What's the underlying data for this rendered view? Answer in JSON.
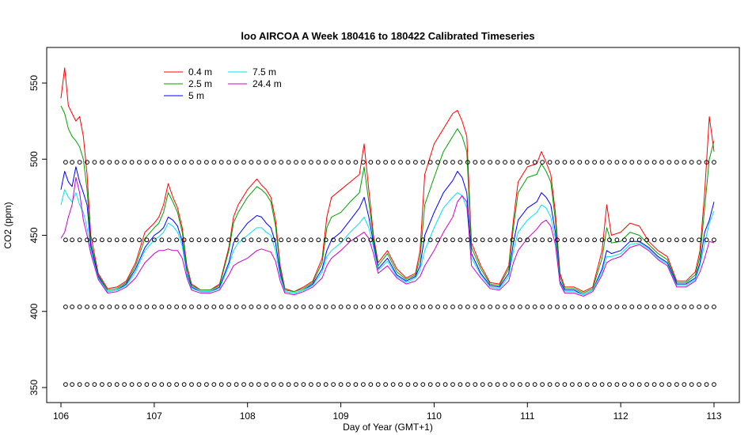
{
  "chart_data": {
    "type": "line",
    "title": "loo AIRCOA A  Week 180416 to 180422  Calibrated Timeseries",
    "xlabel": "Day of Year (GMT+1)",
    "ylabel": "CO2 (ppm)",
    "xlim": [
      106,
      113
    ],
    "ylim": [
      345,
      570
    ],
    "xticks": [
      106,
      107,
      108,
      109,
      110,
      111,
      112,
      113
    ],
    "xtick_labels": [
      "106",
      "107",
      "108",
      "109",
      "110",
      "111",
      "112",
      "113"
    ],
    "yticks": [
      350,
      400,
      450,
      500,
      550
    ],
    "ytick_labels": [
      "350",
      "400",
      "450",
      "500",
      "550"
    ],
    "grid": false,
    "legend_position": "top-left",
    "series": [
      {
        "name": "0.4 m",
        "color": "#ff0000",
        "x": [
          106.0,
          106.04,
          106.08,
          106.12,
          106.16,
          106.2,
          106.24,
          106.28,
          106.32,
          106.4,
          106.5,
          106.6,
          106.7,
          106.8,
          106.9,
          107.0,
          107.05,
          107.1,
          107.15,
          107.2,
          107.25,
          107.3,
          107.35,
          107.4,
          107.5,
          107.6,
          107.7,
          107.8,
          107.85,
          107.9,
          108.0,
          108.1,
          108.15,
          108.2,
          108.25,
          108.3,
          108.35,
          108.4,
          108.5,
          108.6,
          108.7,
          108.8,
          108.85,
          108.9,
          109.0,
          109.1,
          109.2,
          109.25,
          109.3,
          109.35,
          109.4,
          109.5,
          109.6,
          109.7,
          109.8,
          109.85,
          109.9,
          110.0,
          110.1,
          110.2,
          110.25,
          110.3,
          110.35,
          110.4,
          110.5,
          110.6,
          110.7,
          110.8,
          110.85,
          110.9,
          111.0,
          111.1,
          111.15,
          111.2,
          111.25,
          111.3,
          111.35,
          111.4,
          111.5,
          111.6,
          111.7,
          111.8,
          111.85,
          111.9,
          112.0,
          112.1,
          112.2,
          112.3,
          112.4,
          112.5,
          112.6,
          112.7,
          112.8,
          112.85,
          112.9,
          112.95,
          113.0
        ],
        "y": [
          540,
          560,
          535,
          530,
          525,
          528,
          515,
          490,
          450,
          425,
          415,
          416,
          420,
          432,
          452,
          458,
          462,
          470,
          484,
          475,
          468,
          455,
          430,
          418,
          414,
          414,
          418,
          442,
          462,
          470,
          480,
          487,
          483,
          480,
          475,
          460,
          430,
          415,
          413,
          416,
          420,
          435,
          462,
          475,
          480,
          485,
          490,
          510,
          480,
          450,
          432,
          440,
          428,
          422,
          425,
          440,
          490,
          510,
          520,
          530,
          532,
          525,
          515,
          445,
          430,
          419,
          418,
          430,
          460,
          485,
          495,
          497,
          505,
          498,
          490,
          465,
          425,
          416,
          416,
          413,
          416,
          440,
          470,
          450,
          452,
          458,
          456,
          446,
          440,
          436,
          420,
          420,
          426,
          440,
          478,
          528,
          505
        ]
      },
      {
        "name": "2.5 m",
        "color": "#00a000",
        "x": [
          106.0,
          106.04,
          106.08,
          106.12,
          106.16,
          106.2,
          106.24,
          106.28,
          106.32,
          106.4,
          106.5,
          106.6,
          106.7,
          106.8,
          106.9,
          107.0,
          107.05,
          107.1,
          107.15,
          107.2,
          107.25,
          107.3,
          107.35,
          107.4,
          107.5,
          107.6,
          107.7,
          107.8,
          107.85,
          107.9,
          108.0,
          108.1,
          108.15,
          108.2,
          108.25,
          108.3,
          108.35,
          108.4,
          108.5,
          108.6,
          108.7,
          108.8,
          108.85,
          108.9,
          109.0,
          109.1,
          109.2,
          109.25,
          109.3,
          109.35,
          109.4,
          109.5,
          109.6,
          109.7,
          109.8,
          109.85,
          109.9,
          110.0,
          110.1,
          110.2,
          110.25,
          110.3,
          110.35,
          110.4,
          110.5,
          110.6,
          110.7,
          110.8,
          110.85,
          110.9,
          111.0,
          111.1,
          111.15,
          111.2,
          111.25,
          111.3,
          111.35,
          111.4,
          111.5,
          111.6,
          111.7,
          111.8,
          111.85,
          111.9,
          112.0,
          112.1,
          112.2,
          112.3,
          112.4,
          112.5,
          112.6,
          112.7,
          112.8,
          112.85,
          112.9,
          112.95,
          113.0
        ],
        "y": [
          535,
          530,
          520,
          515,
          512,
          508,
          500,
          480,
          445,
          424,
          414,
          415,
          419,
          430,
          448,
          455,
          458,
          465,
          478,
          472,
          465,
          452,
          428,
          417,
          414,
          414,
          417,
          440,
          458,
          465,
          475,
          482,
          480,
          477,
          472,
          456,
          428,
          414,
          413,
          415,
          419,
          432,
          455,
          462,
          465,
          472,
          478,
          495,
          472,
          448,
          430,
          438,
          426,
          421,
          424,
          435,
          470,
          488,
          505,
          515,
          520,
          515,
          505,
          442,
          428,
          418,
          417,
          428,
          455,
          478,
          488,
          490,
          497,
          492,
          485,
          460,
          423,
          415,
          415,
          412,
          415,
          435,
          455,
          445,
          446,
          452,
          450,
          444,
          438,
          434,
          419,
          419,
          424,
          436,
          468,
          500,
          512
        ]
      },
      {
        "name": "5 m",
        "color": "#0000ff",
        "x": [
          106.0,
          106.04,
          106.08,
          106.12,
          106.16,
          106.2,
          106.24,
          106.28,
          106.32,
          106.4,
          106.5,
          106.6,
          106.7,
          106.8,
          106.9,
          107.0,
          107.05,
          107.1,
          107.15,
          107.2,
          107.25,
          107.3,
          107.35,
          107.4,
          107.5,
          107.6,
          107.7,
          107.8,
          107.85,
          107.9,
          108.0,
          108.1,
          108.15,
          108.2,
          108.25,
          108.3,
          108.35,
          108.4,
          108.5,
          108.6,
          108.7,
          108.8,
          108.85,
          108.9,
          109.0,
          109.1,
          109.2,
          109.25,
          109.3,
          109.35,
          109.4,
          109.5,
          109.6,
          109.7,
          109.8,
          109.85,
          109.9,
          110.0,
          110.1,
          110.2,
          110.25,
          110.3,
          110.35,
          110.4,
          110.5,
          110.6,
          110.7,
          110.8,
          110.85,
          110.9,
          111.0,
          111.1,
          111.15,
          111.2,
          111.25,
          111.3,
          111.35,
          111.4,
          111.5,
          111.6,
          111.7,
          111.8,
          111.85,
          111.9,
          112.0,
          112.1,
          112.2,
          112.3,
          112.4,
          112.5,
          112.6,
          112.7,
          112.8,
          112.85,
          112.9,
          112.95,
          113.0
        ],
        "y": [
          480,
          492,
          485,
          482,
          495,
          485,
          478,
          470,
          443,
          423,
          413,
          414,
          418,
          428,
          442,
          450,
          452,
          455,
          462,
          460,
          456,
          446,
          425,
          416,
          413,
          413,
          416,
          432,
          445,
          450,
          458,
          463,
          462,
          458,
          455,
          445,
          425,
          413,
          412,
          414,
          418,
          428,
          440,
          447,
          452,
          460,
          468,
          475,
          462,
          445,
          428,
          435,
          424,
          420,
          423,
          430,
          450,
          465,
          478,
          486,
          492,
          488,
          478,
          438,
          425,
          417,
          416,
          425,
          445,
          460,
          468,
          472,
          478,
          475,
          470,
          452,
          420,
          414,
          414,
          411,
          414,
          428,
          440,
          438,
          440,
          446,
          446,
          442,
          436,
          432,
          418,
          418,
          422,
          432,
          452,
          460,
          472
        ]
      },
      {
        "name": "7.5 m",
        "color": "#00e5ee",
        "x": [
          106.0,
          106.04,
          106.08,
          106.12,
          106.16,
          106.2,
          106.24,
          106.28,
          106.32,
          106.4,
          106.5,
          106.6,
          106.7,
          106.8,
          106.9,
          107.0,
          107.05,
          107.1,
          107.15,
          107.2,
          107.25,
          107.3,
          107.35,
          107.4,
          107.5,
          107.6,
          107.7,
          107.8,
          107.85,
          107.9,
          108.0,
          108.1,
          108.15,
          108.2,
          108.25,
          108.3,
          108.35,
          108.4,
          108.5,
          108.6,
          108.7,
          108.8,
          108.85,
          108.9,
          109.0,
          109.1,
          109.2,
          109.25,
          109.3,
          109.35,
          109.4,
          109.5,
          109.6,
          109.7,
          109.8,
          109.85,
          109.9,
          110.0,
          110.1,
          110.2,
          110.25,
          110.3,
          110.35,
          110.4,
          110.5,
          110.6,
          110.7,
          110.8,
          110.85,
          110.9,
          111.0,
          111.1,
          111.15,
          111.2,
          111.25,
          111.3,
          111.35,
          111.4,
          111.5,
          111.6,
          111.7,
          111.8,
          111.85,
          111.9,
          112.0,
          112.1,
          112.2,
          112.3,
          112.4,
          112.5,
          112.6,
          112.7,
          112.8,
          112.85,
          112.9,
          112.95,
          113.0
        ],
        "y": [
          470,
          480,
          475,
          472,
          478,
          470,
          465,
          455,
          440,
          422,
          413,
          414,
          417,
          426,
          440,
          447,
          449,
          452,
          458,
          456,
          452,
          443,
          424,
          415,
          413,
          413,
          415,
          430,
          440,
          445,
          450,
          455,
          455,
          452,
          450,
          440,
          423,
          413,
          412,
          414,
          417,
          426,
          436,
          440,
          445,
          452,
          458,
          462,
          455,
          442,
          427,
          433,
          423,
          419,
          422,
          427,
          440,
          455,
          468,
          475,
          478,
          476,
          468,
          435,
          424,
          416,
          415,
          423,
          440,
          452,
          460,
          465,
          470,
          468,
          462,
          448,
          419,
          413,
          413,
          411,
          414,
          426,
          436,
          436,
          438,
          444,
          445,
          441,
          435,
          431,
          417,
          417,
          421,
          430,
          445,
          458,
          466
        ]
      },
      {
        "name": "24.4 m",
        "color": "#cc00cc",
        "x": [
          106.0,
          106.04,
          106.08,
          106.12,
          106.16,
          106.2,
          106.24,
          106.28,
          106.32,
          106.4,
          106.5,
          106.6,
          106.7,
          106.8,
          106.9,
          107.0,
          107.05,
          107.1,
          107.15,
          107.2,
          107.25,
          107.3,
          107.35,
          107.4,
          107.5,
          107.6,
          107.7,
          107.8,
          107.85,
          107.9,
          108.0,
          108.1,
          108.15,
          108.2,
          108.25,
          108.3,
          108.35,
          108.4,
          108.5,
          108.6,
          108.7,
          108.8,
          108.85,
          108.9,
          109.0,
          109.1,
          109.2,
          109.25,
          109.3,
          109.35,
          109.4,
          109.5,
          109.6,
          109.7,
          109.8,
          109.85,
          109.9,
          110.0,
          110.1,
          110.2,
          110.25,
          110.3,
          110.35,
          110.4,
          110.5,
          110.6,
          110.7,
          110.8,
          110.85,
          110.9,
          111.0,
          111.1,
          111.15,
          111.2,
          111.25,
          111.3,
          111.35,
          111.4,
          111.5,
          111.6,
          111.7,
          111.8,
          111.85,
          111.9,
          112.0,
          112.1,
          112.2,
          112.3,
          112.4,
          112.5,
          112.6,
          112.7,
          112.8,
          112.85,
          112.9,
          112.95,
          113.0
        ],
        "y": [
          448,
          452,
          462,
          470,
          488,
          478,
          460,
          450,
          438,
          421,
          412,
          413,
          416,
          422,
          432,
          438,
          440,
          440,
          441,
          440,
          440,
          435,
          422,
          414,
          412,
          412,
          414,
          424,
          430,
          432,
          435,
          440,
          441,
          440,
          439,
          433,
          420,
          412,
          411,
          413,
          416,
          422,
          430,
          435,
          440,
          446,
          450,
          452,
          448,
          438,
          425,
          430,
          422,
          418,
          420,
          423,
          430,
          440,
          452,
          462,
          472,
          476,
          472,
          430,
          422,
          415,
          414,
          420,
          432,
          440,
          448,
          454,
          458,
          460,
          456,
          444,
          418,
          412,
          412,
          410,
          413,
          424,
          432,
          434,
          436,
          442,
          444,
          440,
          434,
          430,
          416,
          416,
          420,
          426,
          435,
          446,
          445
        ]
      },
      {
        "name": "",
        "kind": "points",
        "color": "#000000",
        "levels": [
          352,
          403,
          447,
          498
        ],
        "x": [
          106.05,
          106.12,
          106.2,
          106.28,
          106.36,
          106.44,
          106.52,
          106.6,
          106.68,
          106.76,
          106.84,
          106.92,
          107.0,
          107.08,
          107.16,
          107.24,
          107.32,
          107.4,
          107.48,
          107.56,
          107.64,
          107.72,
          107.8,
          107.88,
          107.96,
          108.04,
          108.12,
          108.2,
          108.28,
          108.36,
          108.44,
          108.52,
          108.6,
          108.68,
          108.76,
          108.84,
          108.92,
          109.0,
          109.08,
          109.16,
          109.24,
          109.32,
          109.4,
          109.48,
          109.56,
          109.64,
          109.72,
          109.8,
          109.88,
          109.96,
          110.04,
          110.12,
          110.2,
          110.28,
          110.36,
          110.44,
          110.52,
          110.6,
          110.68,
          110.76,
          110.84,
          110.92,
          111.0,
          111.08,
          111.16,
          111.24,
          111.32,
          111.4,
          111.48,
          111.56,
          111.64,
          111.72,
          111.8,
          111.88,
          111.96,
          112.04,
          112.12,
          112.2,
          112.28,
          112.36,
          112.44,
          112.52,
          112.6,
          112.68,
          112.76,
          112.84,
          112.92,
          113.0
        ]
      }
    ]
  }
}
